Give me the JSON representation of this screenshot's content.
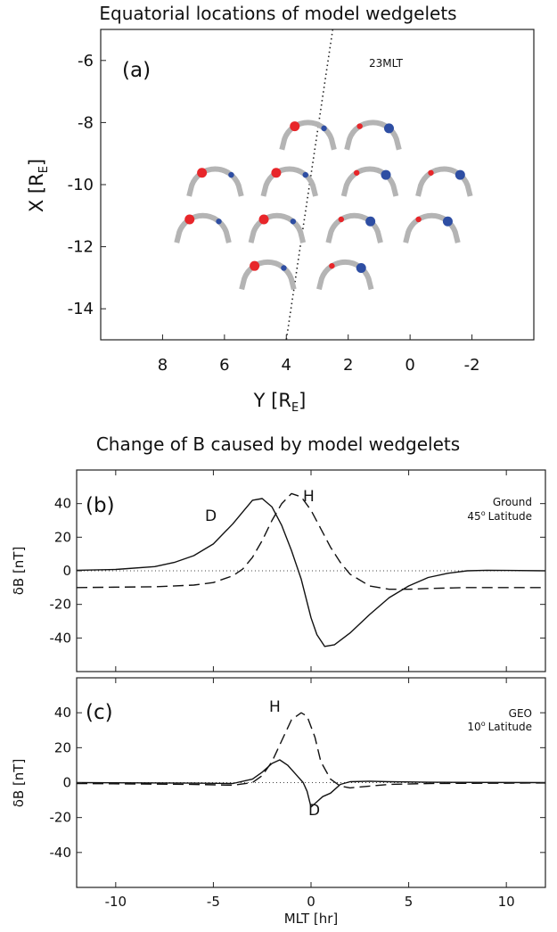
{
  "chart_data": [
    {
      "type": "scatter",
      "panel": "(a)",
      "title": "Equatorial locations of model wedgelets",
      "xlabel_main": "Y [R",
      "xlabel_sub": "E",
      "xlabel_end": "]",
      "ylabel_main": "X [R",
      "ylabel_sub": "E",
      "ylabel_end": "]",
      "xlim": [
        10,
        -4
      ],
      "ylim": [
        -15,
        -5
      ],
      "xticks": [
        8,
        6,
        4,
        2,
        0,
        -2
      ],
      "yticks": [
        -6,
        -8,
        -10,
        -12,
        -14
      ],
      "line_label": "23MLT",
      "line": {
        "p1": [
          2.5,
          -5
        ],
        "p2": [
          4.0,
          -15
        ]
      },
      "wedgelets": [
        {
          "x": 3.3,
          "y": -8.4,
          "red_size": "large",
          "blue_size": "small"
        },
        {
          "x": 1.2,
          "y": -8.4,
          "red_size": "small",
          "blue_size": "large"
        },
        {
          "x": 6.3,
          "y": -9.9,
          "red_size": "large",
          "blue_size": "small"
        },
        {
          "x": 3.9,
          "y": -9.9,
          "red_size": "large",
          "blue_size": "small"
        },
        {
          "x": 1.3,
          "y": -9.9,
          "red_size": "small",
          "blue_size": "large"
        },
        {
          "x": -1.1,
          "y": -9.9,
          "red_size": "small",
          "blue_size": "large"
        },
        {
          "x": 6.7,
          "y": -11.4,
          "red_size": "large",
          "blue_size": "small"
        },
        {
          "x": 4.3,
          "y": -11.4,
          "red_size": "large",
          "blue_size": "small"
        },
        {
          "x": 1.8,
          "y": -11.4,
          "red_size": "small",
          "blue_size": "large"
        },
        {
          "x": -0.7,
          "y": -11.4,
          "red_size": "small",
          "blue_size": "large"
        },
        {
          "x": 4.6,
          "y": -12.9,
          "red_size": "large",
          "blue_size": "small"
        },
        {
          "x": 2.1,
          "y": -12.9,
          "red_size": "small",
          "blue_size": "large"
        }
      ],
      "colors": {
        "red": "#e8262a",
        "blue": "#2e4ea3",
        "arc": "#b4b4b4"
      }
    },
    {
      "type": "line",
      "panel": "(b)",
      "title": "Change of B caused by model wedgelets",
      "annotation_line1": "Ground",
      "annotation_lat_num": "45",
      "annotation_lat_deg": "o",
      "annotation_lat_word": "Latitude",
      "ylabel": "δB [nT]",
      "xlim": [
        -12,
        12
      ],
      "ylim": [
        -60,
        60
      ],
      "yticks": [
        40,
        20,
        0,
        -20,
        -40
      ],
      "series": [
        {
          "name": "D",
          "style": "solid",
          "x": [
            -12,
            -10,
            -8,
            -7,
            -6,
            -5,
            -4,
            -3.5,
            -3,
            -2.5,
            -2,
            -1.5,
            -1,
            -0.5,
            0,
            0.3,
            0.7,
            1.2,
            2,
            3,
            4,
            5,
            6,
            7,
            8,
            9,
            10,
            12
          ],
          "y": [
            0.3,
            0.8,
            2.5,
            5,
            9,
            16,
            28,
            35,
            42,
            43,
            38,
            27,
            12,
            -5,
            -28,
            -38,
            -45,
            -44,
            -37,
            -26,
            -16,
            -9,
            -4,
            -1.5,
            0,
            0.3,
            0.2,
            0
          ]
        },
        {
          "name": "H",
          "style": "dashed",
          "x": [
            -12,
            -8,
            -6,
            -5,
            -4,
            -3.5,
            -3,
            -2.5,
            -2,
            -1.5,
            -1,
            -0.5,
            0,
            0.5,
            1,
            1.5,
            2,
            3,
            4,
            5,
            6,
            8,
            12
          ],
          "y": [
            -10,
            -9.5,
            -8.5,
            -7,
            -3,
            1,
            8,
            18,
            30,
            40,
            46,
            44,
            36,
            25,
            14,
            5,
            -2,
            -9,
            -11,
            -11,
            -10.5,
            -10,
            -10
          ]
        }
      ],
      "curve_labels": {
        "D": "D",
        "H": "H"
      }
    },
    {
      "type": "line",
      "panel": "(c)",
      "annotation_line1": "GEO",
      "annotation_lat_num": "10",
      "annotation_lat_deg": "o",
      "annotation_lat_word": "Latitude",
      "ylabel": "δB [nT]",
      "xlabel": "MLT [hr]",
      "xlim": [
        -12,
        12
      ],
      "ylim": [
        -60,
        60
      ],
      "xticks": [
        -10,
        -5,
        0,
        5,
        10
      ],
      "yticks": [
        40,
        20,
        0,
        -20,
        -40
      ],
      "series": [
        {
          "name": "D",
          "style": "solid",
          "x": [
            -12,
            -6,
            -4,
            -3,
            -2.5,
            -2,
            -1.6,
            -1.2,
            -0.8,
            -0.4,
            -0.2,
            0,
            0.3,
            0.6,
            1,
            1.5,
            2,
            3,
            4,
            6,
            12
          ],
          "y": [
            0,
            -0.3,
            -0.5,
            2,
            6,
            11,
            13,
            10,
            5,
            0,
            -5,
            -14,
            -11,
            -8,
            -6,
            -1,
            0.5,
            0.8,
            0.5,
            0.2,
            0
          ]
        },
        {
          "name": "H",
          "style": "dashed",
          "x": [
            -12,
            -6,
            -4,
            -3,
            -2.5,
            -2,
            -1.5,
            -1,
            -0.5,
            -0.2,
            0.2,
            0.5,
            1,
            1.5,
            2,
            3,
            4,
            6,
            12
          ],
          "y": [
            -0.5,
            -1,
            -1.5,
            0,
            4,
            12,
            24,
            36,
            40,
            38,
            26,
            12,
            2,
            -2,
            -3,
            -2,
            -1,
            -0.5,
            -0.2
          ]
        }
      ],
      "curve_labels": {
        "D": "D",
        "H": "H"
      }
    }
  ]
}
